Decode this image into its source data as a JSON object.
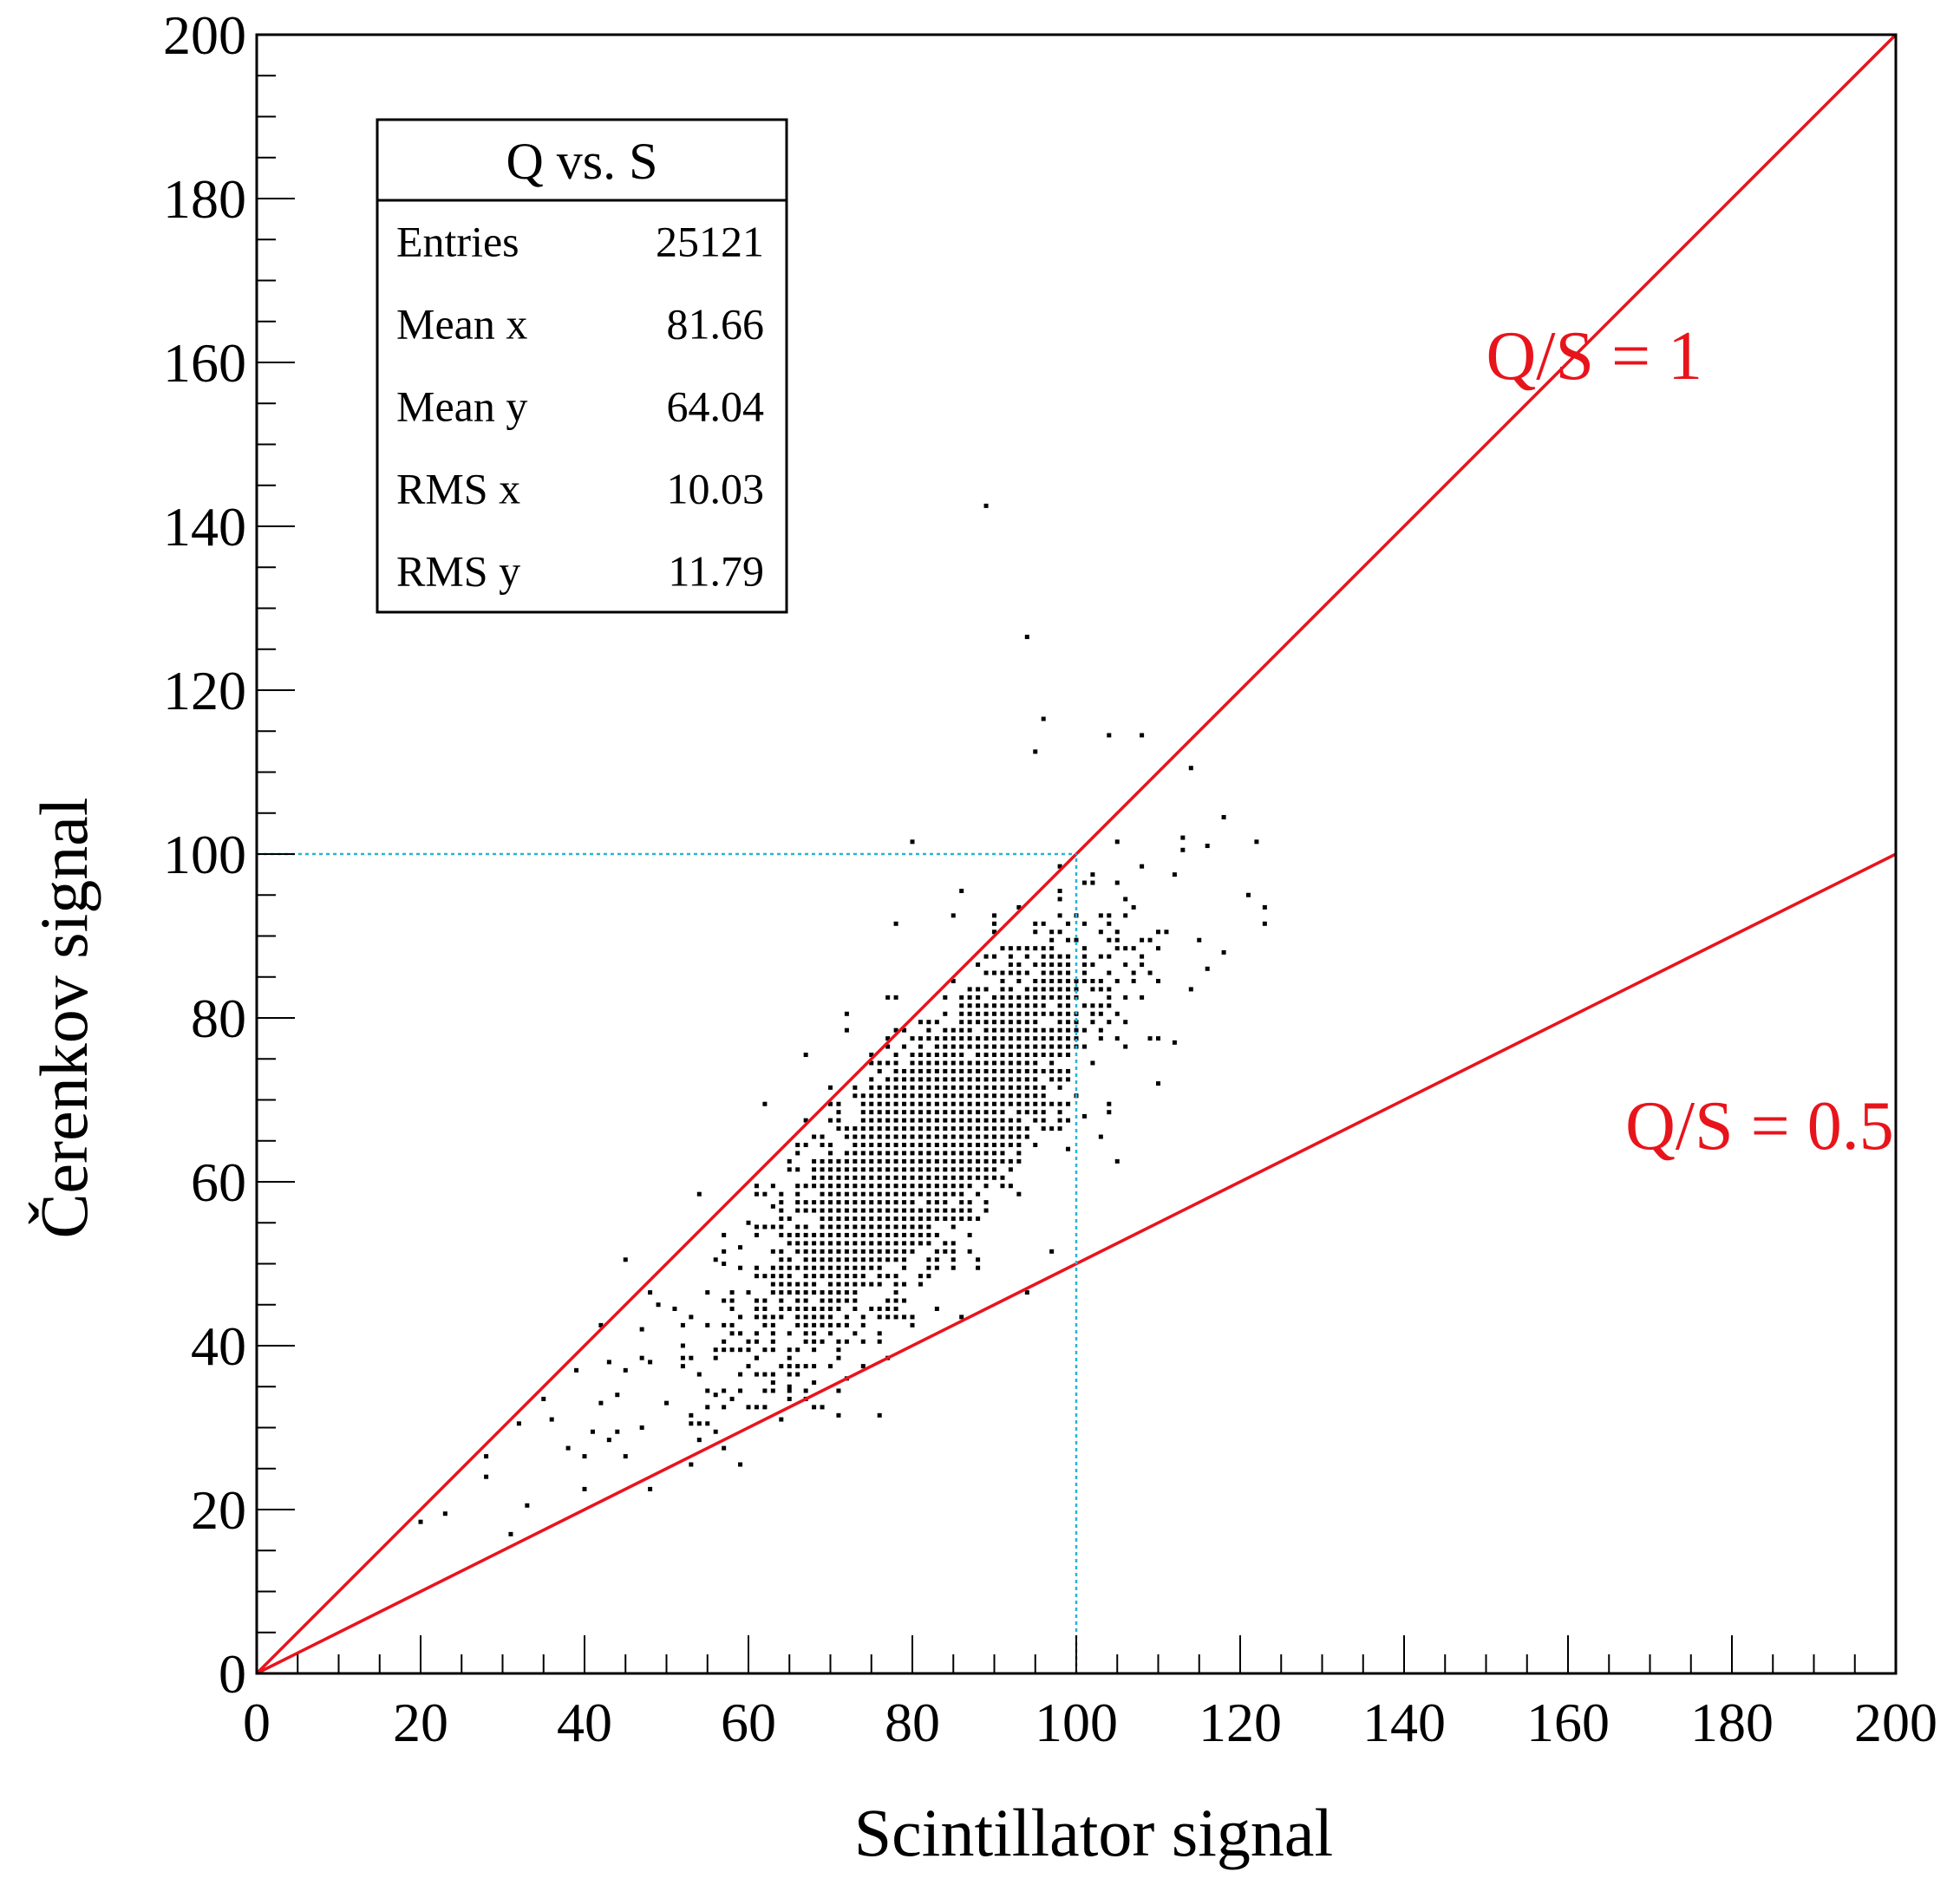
{
  "chart_data": {
    "type": "scatter",
    "xlabel": "Scintillator signal",
    "ylabel": "Čerenkov signal",
    "xlim": [
      0,
      200
    ],
    "ylim": [
      0,
      200
    ],
    "xticks": [
      0,
      20,
      40,
      60,
      80,
      100,
      120,
      140,
      160,
      180,
      200
    ],
    "yticks": [
      0,
      20,
      40,
      60,
      80,
      100,
      120,
      140,
      160,
      180,
      200
    ],
    "grid": false,
    "point_color": "#000000",
    "stats_box": {
      "title": "Q vs. S",
      "rows": [
        {
          "label": "Entries",
          "value": "25121"
        },
        {
          "label": "Mean x",
          "value": "81.66"
        },
        {
          "label": "Mean y",
          "value": "64.04"
        },
        {
          "label": "RMS x",
          "value": "10.03"
        },
        {
          "label": "RMS y",
          "value": "11.79"
        }
      ]
    },
    "reference_lines": [
      {
        "label": "Q/S = 1",
        "slope": 1,
        "color": "#e8141c",
        "label_at": [
          150,
          158
        ]
      },
      {
        "label": "Q/S = 0.5",
        "slope": 0.5,
        "color": "#e8141c",
        "label_at": [
          167,
          64
        ]
      }
    ],
    "guide_lines": {
      "color": "#27b4d4",
      "segments": [
        {
          "from": [
            0,
            100
          ],
          "to": [
            100,
            100
          ]
        },
        {
          "from": [
            100,
            0
          ],
          "to": [
            100,
            100
          ]
        }
      ]
    },
    "distribution": {
      "entries": 25121,
      "mean_x": 81.66,
      "mean_y": 64.04,
      "rms_x": 10.03,
      "rms_y": 11.79
    },
    "outlier_points": [
      [
        89,
        142.5
      ],
      [
        94,
        126.5
      ],
      [
        96,
        116.5
      ],
      [
        104,
        114.5
      ],
      [
        108,
        114.5
      ],
      [
        95,
        112.5
      ],
      [
        114,
        110.5
      ],
      [
        118,
        104.5
      ],
      [
        122,
        101.5
      ],
      [
        123,
        93.5
      ],
      [
        123,
        91.5
      ],
      [
        80,
        101.5
      ],
      [
        86,
        95.5
      ],
      [
        78,
        91.5
      ],
      [
        72,
        80.5
      ],
      [
        72,
        78.5
      ],
      [
        67,
        75.5
      ],
      [
        70,
        71.5
      ],
      [
        54,
        58.5
      ],
      [
        45,
        50.5
      ],
      [
        42,
        42.5
      ],
      [
        41,
        29.5
      ],
      [
        43,
        28.5
      ],
      [
        38,
        27.5
      ],
      [
        40,
        26.5
      ],
      [
        45,
        26.5
      ],
      [
        35,
        33.5
      ],
      [
        32,
        30.5
      ],
      [
        33,
        20.5
      ],
      [
        31,
        17
      ],
      [
        28,
        26.5
      ],
      [
        28,
        24
      ],
      [
        23,
        19.5
      ],
      [
        20,
        18.5
      ],
      [
        40,
        22.5
      ],
      [
        39,
        37
      ],
      [
        36,
        31
      ],
      [
        64,
        31
      ],
      [
        65,
        35
      ],
      [
        72,
        36
      ],
      [
        74,
        37.5
      ],
      [
        86,
        43.5
      ],
      [
        94,
        46.5
      ],
      [
        97,
        51.5
      ],
      [
        103,
        65.5
      ],
      [
        105,
        62.5
      ],
      [
        110,
        72
      ],
      [
        112,
        77
      ],
      [
        116,
        86
      ],
      [
        118,
        88
      ],
      [
        121,
        95
      ],
      [
        116,
        101
      ],
      [
        113,
        102
      ],
      [
        101,
        68
      ],
      [
        99,
        64
      ],
      [
        56,
        34
      ],
      [
        58,
        33.5
      ],
      [
        53,
        31.5
      ],
      [
        61,
        38.5
      ],
      [
        47,
        42
      ],
      [
        49,
        45
      ],
      [
        43,
        38
      ],
      [
        45,
        37
      ],
      [
        44,
        34
      ],
      [
        42,
        33
      ],
      [
        47,
        30
      ],
      [
        50,
        33
      ],
      [
        52,
        40
      ],
      [
        48,
        38
      ],
      [
        57,
        50
      ],
      [
        59,
        52
      ],
      [
        63,
        57
      ],
      [
        60,
        55
      ]
    ]
  }
}
